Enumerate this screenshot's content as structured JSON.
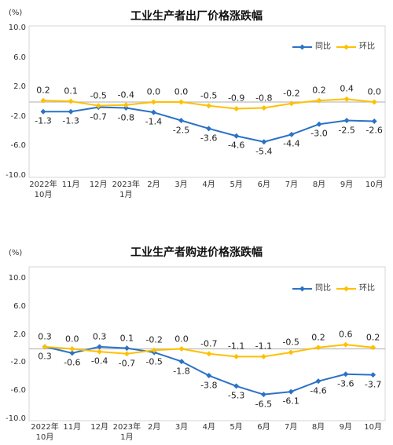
{
  "chart_data": [
    {
      "type": "line",
      "title": "工业生产者出厂价格涨跌幅",
      "ylabel": "(%)",
      "xlabel": "",
      "ylim": [
        -10,
        10
      ],
      "yticks": [
        "10.0",
        "6.0",
        "2.0",
        "-2.0",
        "-6.0",
        "-10.0"
      ],
      "grid": false,
      "legend": "top-right",
      "categories": [
        "2022年\n10月",
        "11月",
        "12月",
        "2023年\n1月",
        "2月",
        "3月",
        "4月",
        "5月",
        "6月",
        "7月",
        "8月",
        "9月",
        "10月"
      ],
      "series": [
        {
          "name": "同比",
          "color": "#2b72c6",
          "values": [
            -1.3,
            -1.3,
            -0.7,
            -0.8,
            -1.4,
            -2.5,
            -3.6,
            -4.6,
            -5.4,
            -4.4,
            -3.0,
            -2.5,
            -2.6
          ]
        },
        {
          "name": "环比",
          "color": "#ffc000",
          "values": [
            0.2,
            0.1,
            -0.5,
            -0.4,
            0.0,
            0.0,
            -0.5,
            -0.9,
            -0.8,
            -0.2,
            0.2,
            0.4,
            0.0
          ]
        }
      ]
    },
    {
      "type": "line",
      "title": "工业生产者购进价格涨跌幅",
      "ylabel": "(%)",
      "xlabel": "",
      "ylim": [
        -10,
        10
      ],
      "yticks": [
        "10.0",
        "6.0",
        "2.0",
        "-2.0",
        "-6.0",
        "-10.0"
      ],
      "grid": false,
      "legend": "top-right",
      "categories": [
        "2022年\n10月",
        "11月",
        "12月",
        "2023年\n1月",
        "2月",
        "3月",
        "4月",
        "5月",
        "6月",
        "7月",
        "8月",
        "9月",
        "10月"
      ],
      "series": [
        {
          "name": "同比",
          "color": "#2b72c6",
          "values": [
            0.3,
            -0.6,
            0.3,
            0.1,
            -0.5,
            -1.8,
            -3.8,
            -5.3,
            -6.5,
            -6.1,
            -4.6,
            -3.6,
            -3.7
          ]
        },
        {
          "name": "环比",
          "color": "#ffc000",
          "values": [
            0.3,
            0.0,
            -0.4,
            -0.7,
            -0.2,
            0.0,
            -0.7,
            -1.1,
            -1.1,
            -0.5,
            0.2,
            0.6,
            0.2
          ]
        }
      ]
    }
  ]
}
